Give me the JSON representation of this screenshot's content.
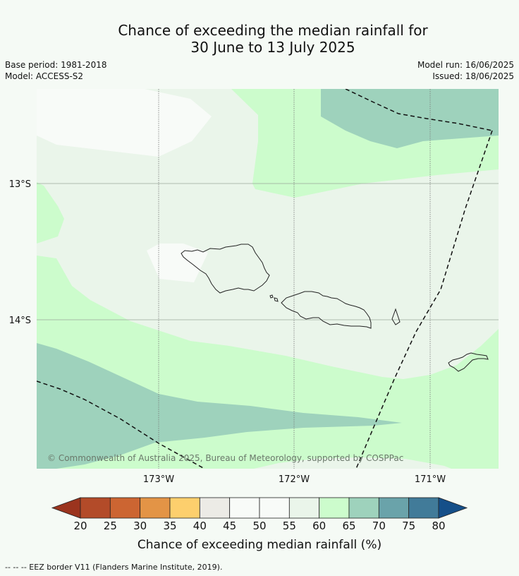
{
  "header": {
    "title_line1": "Chance of exceeding the median rainfall for",
    "title_line2": "30 June to 13 July 2025",
    "base_period": "Base period: 1981-2018",
    "model": "Model: ACCESS-S2",
    "model_run": "Model run: 16/06/2025",
    "issued": "Issued: 18/06/2025"
  },
  "map": {
    "lat_labels": [
      "13°S",
      "14°S"
    ],
    "lon_labels": [
      "173°W",
      "172°W",
      "171°W"
    ],
    "copyright": "© Commonwealth of Australia 2025, Bureau of Meteorology, supported by COSPPac",
    "colors": {
      "c45_50": "#f8fbf8",
      "c55_60": "#eaf5ea",
      "c60_65": "#ccfccc",
      "c65_70": "#9ed2bc",
      "land_outline": "#222222",
      "eez_line": "#111111"
    }
  },
  "colorbar": {
    "ticks": [
      "20",
      "25",
      "30",
      "35",
      "40",
      "45",
      "50",
      "55",
      "60",
      "65",
      "70",
      "75",
      "80"
    ],
    "colors": [
      "#9b341e",
      "#b34b29",
      "#cc6532",
      "#e39446",
      "#fdcf6d",
      "#ecebe6",
      "#f8fbf8",
      "#f8fbf8",
      "#eaf5ea",
      "#ccfccc",
      "#9ed2bc",
      "#6aa3aa",
      "#417b99",
      "#154f89"
    ],
    "title": "Chance of exceeding median rainfall (%)"
  },
  "footer": {
    "eez_legend": "--  --  -- EEZ border V11 (Flanders Marine Institute, 2019)."
  }
}
